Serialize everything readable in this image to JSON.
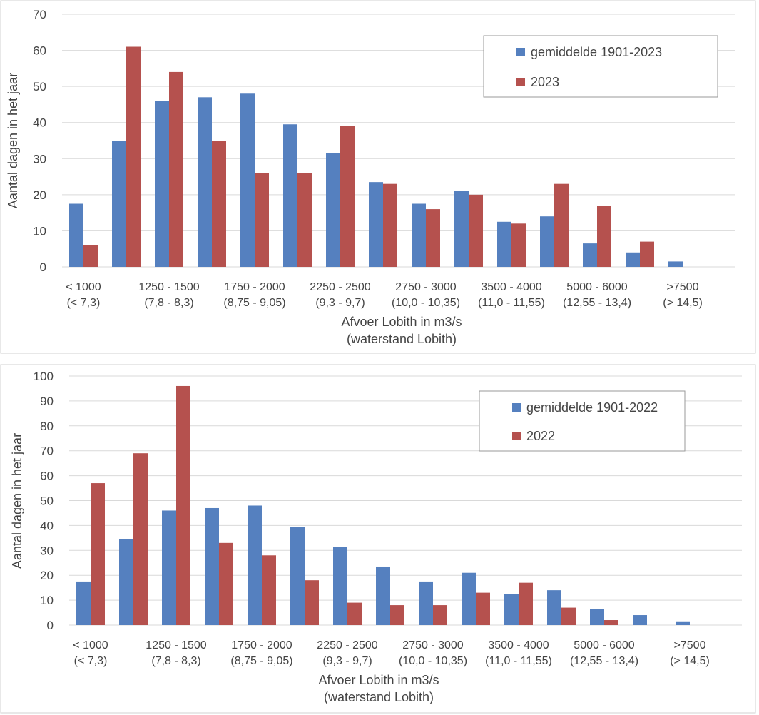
{
  "colors": {
    "average": "#5580BF",
    "year": "#B5514E",
    "grid": "#D9D9D9",
    "frame": "#D0D0D0"
  },
  "chart_data": [
    {
      "type": "bar",
      "title": "",
      "ylabel": "Aantal dagen in het jaar",
      "xlabel": "Afvoer Lobith in m3/s",
      "xlabel2": "(waterstand Lobith)",
      "ylim": [
        0,
        70
      ],
      "yticks": [
        0,
        10,
        20,
        30,
        40,
        50,
        60,
        70
      ],
      "grid": true,
      "legend_position": "top-right",
      "categories": [
        "< 1000",
        "",
        "1250 - 1500",
        "",
        "1750 - 2000",
        "",
        "2250 - 2500",
        "",
        "2750 - 3000",
        "",
        "3500 - 4000",
        "",
        "5000 - 6000",
        "",
        ">7500"
      ],
      "sublabels": [
        "(< 7,3)",
        "",
        "(7,8 - 8,3)",
        "",
        "(8,75 - 9,05)",
        "",
        "(9,3 - 9,7)",
        "",
        "(10,0 - 10,35)",
        "",
        "(11,0 - 11,55)",
        "",
        "(12,55 - 13,4)",
        "",
        "(> 14,5)"
      ],
      "series": [
        {
          "name": "gemiddelde 1901-2023",
          "values": [
            17.5,
            35,
            46,
            47,
            48,
            39.5,
            31.5,
            23.5,
            17.5,
            21,
            12.5,
            14,
            6.5,
            4,
            1.5
          ]
        },
        {
          "name": "2023",
          "values": [
            6,
            61,
            54,
            35,
            26,
            26,
            39,
            23,
            16,
            20,
            12,
            23,
            17,
            7,
            0
          ]
        }
      ]
    },
    {
      "type": "bar",
      "title": "",
      "ylabel": "Aantal dagen in het jaar",
      "xlabel": "Afvoer Lobith in m3/s",
      "xlabel2": "(waterstand Lobith)",
      "ylim": [
        0,
        100
      ],
      "yticks": [
        0,
        10,
        20,
        30,
        40,
        50,
        60,
        70,
        80,
        90,
        100
      ],
      "grid": true,
      "legend_position": "top-right",
      "categories": [
        "< 1000",
        "",
        "1250 - 1500",
        "",
        "1750 - 2000",
        "",
        "2250 - 2500",
        "",
        "2750 - 3000",
        "",
        "3500 - 4000",
        "",
        "5000 - 6000",
        "",
        ">7500"
      ],
      "sublabels": [
        "(< 7,3)",
        "",
        "(7,8 - 8,3)",
        "",
        "(8,75 - 9,05)",
        "",
        "(9,3 - 9,7)",
        "",
        "(10,0 - 10,35)",
        "",
        "(11,0 - 11,55)",
        "",
        "(12,55 - 13,4)",
        "",
        "(> 14,5)"
      ],
      "series": [
        {
          "name": "gemiddelde 1901-2022",
          "values": [
            17.5,
            34.5,
            46,
            47,
            48,
            39.5,
            31.5,
            23.5,
            17.5,
            21,
            12.5,
            14,
            6.5,
            4,
            1.5
          ]
        },
        {
          "name": "2022",
          "values": [
            57,
            69,
            96,
            33,
            28,
            18,
            9,
            8,
            8,
            13,
            17,
            7,
            2,
            0,
            0
          ]
        }
      ]
    }
  ]
}
